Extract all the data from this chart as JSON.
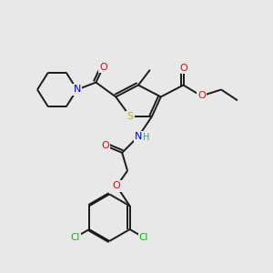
{
  "bg_color": "#e8e8e8",
  "atom_colors": {
    "S": "#ccaa00",
    "N": "#0000ff",
    "O": "#ff0000",
    "Cl": "#00bb00",
    "C": "#1a1a1a",
    "H": "#4a9090"
  },
  "bond_color": "#1a1a1a",
  "bond_width": 1.4,
  "dbl_sep": 2.8
}
